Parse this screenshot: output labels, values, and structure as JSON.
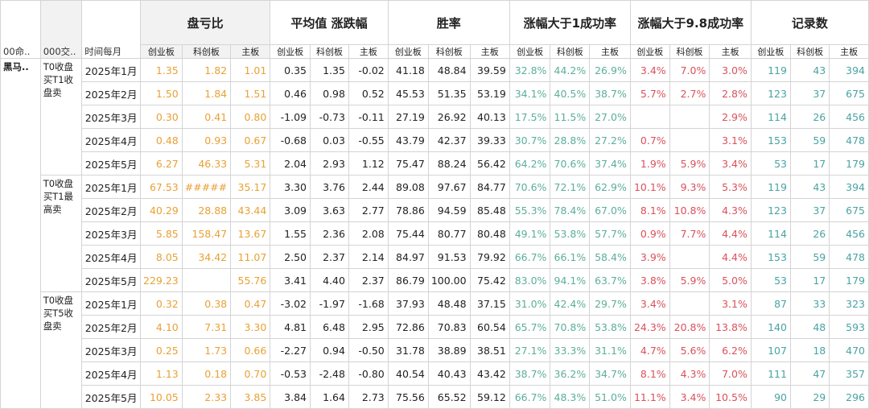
{
  "header": {
    "col0": "00命..",
    "col1": "000交..",
    "col2": "时间每月",
    "groups": [
      "盘亏比",
      "平均值 涨跌幅",
      "胜率",
      "涨幅大于1成功率",
      "涨幅大于9.8成功率",
      "记录数"
    ],
    "sub": [
      "创业板",
      "科创板",
      "主板"
    ]
  },
  "strategy": "黑马..",
  "blocks": [
    {
      "name": "T0收盘买T1收盘卖",
      "rows": [
        {
          "month": "2025年1月",
          "vals": [
            "1.35",
            "1.82",
            "1.01",
            "0.35",
            "1.35",
            "-0.02",
            "41.18",
            "48.84",
            "39.59",
            "32.8%",
            "44.2%",
            "26.9%",
            "3.4%",
            "7.0%",
            "3.0%",
            "119",
            "43",
            "394"
          ]
        },
        {
          "month": "2025年2月",
          "vals": [
            "1.50",
            "1.84",
            "1.51",
            "0.46",
            "0.98",
            "0.52",
            "45.53",
            "51.35",
            "53.19",
            "34.1%",
            "40.5%",
            "38.7%",
            "5.7%",
            "2.7%",
            "2.8%",
            "123",
            "37",
            "675"
          ]
        },
        {
          "month": "2025年3月",
          "vals": [
            "0.30",
            "0.41",
            "0.80",
            "-1.09",
            "-0.73",
            "-0.11",
            "27.19",
            "26.92",
            "40.13",
            "17.5%",
            "11.5%",
            "27.0%",
            "",
            "",
            "2.9%",
            "114",
            "26",
            "456"
          ]
        },
        {
          "month": "2025年4月",
          "vals": [
            "0.48",
            "0.93",
            "0.67",
            "-0.68",
            "0.03",
            "-0.55",
            "43.79",
            "42.37",
            "39.33",
            "30.7%",
            "28.8%",
            "27.2%",
            "0.7%",
            "",
            "3.1%",
            "153",
            "59",
            "478"
          ]
        },
        {
          "month": "2025年5月",
          "vals": [
            "6.27",
            "46.33",
            "5.31",
            "2.04",
            "2.93",
            "1.12",
            "75.47",
            "88.24",
            "56.42",
            "64.2%",
            "70.6%",
            "37.4%",
            "1.9%",
            "5.9%",
            "3.4%",
            "53",
            "17",
            "179"
          ]
        }
      ]
    },
    {
      "name": "T0收盘买T1最高卖",
      "rows": [
        {
          "month": "2025年1月",
          "vals": [
            "67.53",
            "#####",
            "35.17",
            "3.30",
            "3.76",
            "2.44",
            "89.08",
            "97.67",
            "84.77",
            "70.6%",
            "72.1%",
            "62.9%",
            "10.1%",
            "9.3%",
            "5.3%",
            "119",
            "43",
            "394"
          ]
        },
        {
          "month": "2025年2月",
          "vals": [
            "40.29",
            "28.88",
            "43.44",
            "3.09",
            "3.63",
            "2.77",
            "78.86",
            "94.59",
            "85.48",
            "55.3%",
            "78.4%",
            "67.0%",
            "8.1%",
            "10.8%",
            "4.3%",
            "123",
            "37",
            "675"
          ]
        },
        {
          "month": "2025年3月",
          "vals": [
            "5.85",
            "158.47",
            "13.67",
            "1.55",
            "2.36",
            "2.08",
            "75.44",
            "80.77",
            "80.48",
            "49.1%",
            "53.8%",
            "57.7%",
            "0.9%",
            "7.7%",
            "4.4%",
            "114",
            "26",
            "456"
          ]
        },
        {
          "month": "2025年4月",
          "vals": [
            "8.05",
            "34.42",
            "11.07",
            "2.50",
            "2.37",
            "2.14",
            "84.97",
            "91.53",
            "79.92",
            "66.7%",
            "66.1%",
            "58.4%",
            "3.9%",
            "",
            "4.4%",
            "153",
            "59",
            "478"
          ]
        },
        {
          "month": "2025年5月",
          "vals": [
            "229.23",
            "",
            "55.76",
            "3.41",
            "4.40",
            "2.37",
            "86.79",
            "100.00",
            "75.42",
            "83.0%",
            "94.1%",
            "63.7%",
            "3.8%",
            "5.9%",
            "5.0%",
            "53",
            "17",
            "179"
          ]
        }
      ]
    },
    {
      "name": "T0收盘买T5收盘卖",
      "rows": [
        {
          "month": "2025年1月",
          "vals": [
            "0.32",
            "0.38",
            "0.47",
            "-3.02",
            "-1.97",
            "-1.68",
            "37.93",
            "48.48",
            "37.15",
            "31.0%",
            "42.4%",
            "29.7%",
            "3.4%",
            "",
            "3.1%",
            "87",
            "33",
            "323"
          ]
        },
        {
          "month": "2025年2月",
          "vals": [
            "4.10",
            "7.31",
            "3.30",
            "4.81",
            "6.48",
            "2.95",
            "72.86",
            "70.83",
            "60.54",
            "65.7%",
            "70.8%",
            "53.8%",
            "24.3%",
            "20.8%",
            "13.8%",
            "140",
            "48",
            "593"
          ]
        },
        {
          "month": "2025年3月",
          "vals": [
            "0.25",
            "1.73",
            "0.66",
            "-2.27",
            "0.94",
            "-0.50",
            "31.78",
            "38.89",
            "38.51",
            "27.1%",
            "33.3%",
            "31.1%",
            "4.7%",
            "5.6%",
            "6.2%",
            "107",
            "18",
            "470"
          ]
        },
        {
          "month": "2025年4月",
          "vals": [
            "1.13",
            "0.18",
            "0.70",
            "-0.53",
            "-2.48",
            "-0.80",
            "40.54",
            "40.43",
            "43.42",
            "38.7%",
            "36.2%",
            "34.7%",
            "8.1%",
            "4.3%",
            "7.0%",
            "111",
            "47",
            "357"
          ]
        },
        {
          "month": "2025年5月",
          "vals": [
            "10.05",
            "2.33",
            "3.85",
            "3.84",
            "1.64",
            "2.73",
            "75.56",
            "65.52",
            "59.12",
            "66.7%",
            "48.3%",
            "51.0%",
            "11.1%",
            "3.4%",
            "10.5%",
            "90",
            "29",
            "296"
          ]
        }
      ]
    }
  ]
}
